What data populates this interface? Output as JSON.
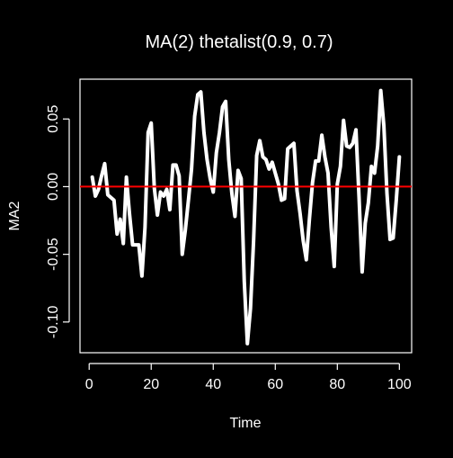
{
  "colors": {
    "background": "#000000",
    "foreground": "#ffffff",
    "series_line": "#ffffff",
    "reference_line": "#ff0000"
  },
  "chart_data": {
    "type": "line",
    "title": "MA(2)   thetalist(0.9, 0.7)",
    "xlabel": "Time",
    "ylabel": "MA2",
    "xlim": [
      -2.96,
      103.96
    ],
    "ylim": [
      -0.1227,
      0.0794
    ],
    "x_ticks": [
      0,
      20,
      40,
      60,
      80,
      100
    ],
    "x_tick_labels": [
      "0",
      "20",
      "40",
      "60",
      "80",
      "100"
    ],
    "y_ticks": [
      -0.1,
      -0.05,
      0.0,
      0.05
    ],
    "y_tick_labels": [
      "-0.10",
      "-0.05",
      "0.00",
      "0.05"
    ],
    "reference_line": {
      "orientation": "horizontal",
      "y": 0.0,
      "color": "#ff0000"
    },
    "grid": false,
    "x": [
      1,
      2,
      3,
      4,
      5,
      6,
      7,
      8,
      9,
      10,
      11,
      12,
      13,
      14,
      15,
      16,
      17,
      18,
      19,
      20,
      21,
      22,
      23,
      24,
      25,
      26,
      27,
      28,
      29,
      30,
      31,
      32,
      33,
      34,
      35,
      36,
      37,
      38,
      39,
      40,
      41,
      42,
      43,
      44,
      45,
      46,
      47,
      48,
      49,
      50,
      51,
      52,
      53,
      54,
      55,
      56,
      57,
      58,
      59,
      60,
      61,
      62,
      63,
      64,
      65,
      66,
      67,
      68,
      69,
      70,
      71,
      72,
      73,
      74,
      75,
      76,
      77,
      78,
      79,
      80,
      81,
      82,
      83,
      84,
      85,
      86,
      87,
      88,
      89,
      90,
      91,
      92,
      93,
      94,
      95,
      96,
      97,
      98,
      99,
      100
    ],
    "series": [
      {
        "values": [
          0.007,
          -0.007,
          -0.002,
          0.008,
          0.017,
          -0.006,
          -0.008,
          -0.01,
          -0.035,
          -0.024,
          -0.042,
          0.007,
          -0.02,
          -0.043,
          -0.043,
          -0.043,
          -0.066,
          -0.03,
          0.04,
          0.047,
          -0.001,
          -0.021,
          -0.004,
          -0.007,
          -0.002,
          -0.017,
          0.016,
          0.016,
          0.008,
          -0.05,
          -0.032,
          -0.01,
          0.013,
          0.052,
          0.068,
          0.07,
          0.04,
          0.02,
          0.006,
          -0.004,
          0.025,
          0.04,
          0.059,
          0.063,
          0.02,
          -0.005,
          -0.022,
          0.012,
          0.006,
          -0.07,
          -0.116,
          -0.09,
          -0.04,
          0.023,
          0.034,
          0.022,
          0.02,
          0.013,
          0.018,
          0.01,
          0.002,
          -0.01,
          -0.009,
          0.028,
          0.03,
          0.032,
          -0.003,
          -0.02,
          -0.04,
          -0.054,
          -0.024,
          0.003,
          0.019,
          0.019,
          0.038,
          0.022,
          0.01,
          -0.03,
          -0.059,
          0.002,
          0.015,
          0.049,
          0.03,
          0.029,
          0.032,
          0.042,
          -0.008,
          -0.063,
          -0.027,
          -0.012,
          0.015,
          0.01,
          0.03,
          0.071,
          0.045,
          -0.005,
          -0.039,
          -0.038,
          -0.01,
          0.022
        ]
      }
    ]
  }
}
